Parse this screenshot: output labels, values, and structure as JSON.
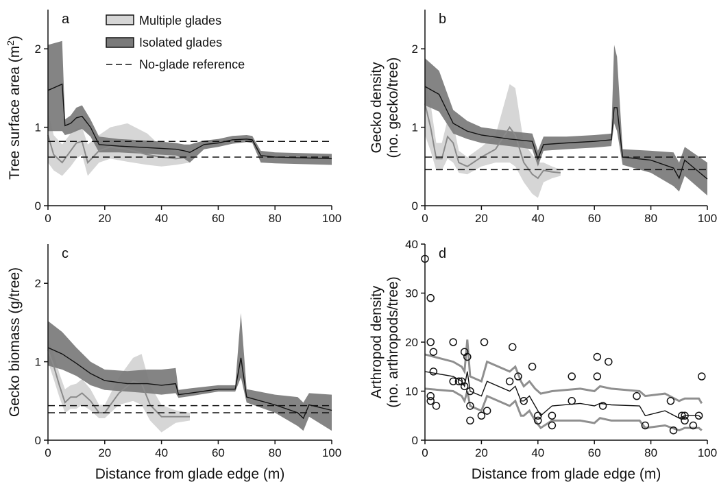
{
  "legend": {
    "multiple": "Multiple glades",
    "isolated": "Isolated glades",
    "reference": "No-glade reference"
  },
  "colors": {
    "multiple_band": "#d6d6d6",
    "isolated_band": "#7a7a7a",
    "mean_line": "#111111",
    "multiple_line": "#8a8a8a",
    "arthropod_band": "#8f8f8f"
  },
  "chart_data": [
    {
      "panel": "a",
      "type": "area",
      "ylabel": "Tree surface area (m2)",
      "xlim": [
        0,
        100
      ],
      "ylim": [
        0,
        2.5
      ],
      "xticks": [
        0,
        20,
        40,
        60,
        80,
        100
      ],
      "yticks": [
        0,
        1,
        2
      ],
      "reference_lines": [
        0.82,
        0.62
      ],
      "series": [
        {
          "name": "Isolated glades",
          "x": [
            0,
            5,
            6,
            8,
            10,
            12,
            15,
            18,
            25,
            35,
            45,
            48,
            50,
            55,
            60,
            65,
            70,
            72,
            75,
            80,
            100
          ],
          "mean": [
            1.47,
            1.55,
            1.02,
            1.05,
            1.12,
            1.14,
            1.0,
            0.78,
            0.76,
            0.74,
            0.72,
            0.7,
            0.68,
            0.78,
            0.8,
            0.84,
            0.85,
            0.84,
            0.64,
            0.62,
            0.6
          ],
          "lower": [
            0.95,
            0.95,
            0.9,
            0.92,
            0.95,
            0.98,
            0.88,
            0.68,
            0.68,
            0.66,
            0.64,
            0.6,
            0.55,
            0.72,
            0.75,
            0.79,
            0.81,
            0.8,
            0.55,
            0.54,
            0.52
          ],
          "upper": [
            2.05,
            2.1,
            1.1,
            1.15,
            1.25,
            1.28,
            1.1,
            0.88,
            0.85,
            0.83,
            0.8,
            0.78,
            0.78,
            0.83,
            0.85,
            0.89,
            0.9,
            0.89,
            0.7,
            0.68,
            0.66
          ]
        },
        {
          "name": "Multiple glades",
          "x": [
            0,
            2,
            5,
            8,
            10,
            12,
            14,
            18,
            22,
            28,
            35,
            40,
            45,
            50
          ],
          "mean": [
            0.9,
            0.65,
            0.55,
            0.7,
            0.8,
            0.82,
            0.55,
            0.7,
            0.75,
            0.72,
            0.65,
            0.62,
            0.6,
            0.62
          ],
          "lower": [
            0.55,
            0.45,
            0.38,
            0.5,
            0.6,
            0.65,
            0.38,
            0.55,
            0.6,
            0.56,
            0.52,
            0.5,
            0.52,
            0.55
          ],
          "upper": [
            1.2,
            0.9,
            0.78,
            0.92,
            0.98,
            1.0,
            0.78,
            0.9,
            1.0,
            1.05,
            0.92,
            0.75,
            0.68,
            0.7
          ]
        }
      ]
    },
    {
      "panel": "b",
      "type": "area",
      "ylabel": "Gecko density",
      "ylabel2": "(no. gecko/tree)",
      "xlim": [
        0,
        100
      ],
      "ylim": [
        0,
        2.5
      ],
      "xticks": [
        0,
        20,
        40,
        60,
        80,
        100
      ],
      "yticks": [
        0,
        1,
        2
      ],
      "reference_lines": [
        0.62,
        0.46
      ],
      "series": [
        {
          "name": "Isolated glades",
          "x": [
            0,
            5,
            10,
            15,
            20,
            30,
            38,
            40,
            42,
            50,
            60,
            66,
            67,
            68,
            70,
            80,
            88,
            90,
            92,
            100
          ],
          "mean": [
            1.52,
            1.42,
            1.05,
            0.95,
            0.9,
            0.85,
            0.82,
            0.6,
            0.78,
            0.8,
            0.82,
            0.84,
            1.25,
            1.25,
            0.62,
            0.58,
            0.48,
            0.35,
            0.58,
            0.34
          ],
          "lower": [
            1.28,
            1.2,
            0.92,
            0.85,
            0.8,
            0.76,
            0.72,
            0.5,
            0.7,
            0.72,
            0.74,
            0.76,
            1.05,
            0.95,
            0.52,
            0.42,
            0.25,
            0.18,
            0.38,
            0.13
          ],
          "upper": [
            1.88,
            1.72,
            1.22,
            1.08,
            1.0,
            0.95,
            0.92,
            0.7,
            0.88,
            0.88,
            0.9,
            0.92,
            2.05,
            1.9,
            0.72,
            0.7,
            0.68,
            0.55,
            0.75,
            0.55
          ]
        },
        {
          "name": "Multiple glades",
          "x": [
            0,
            2,
            4,
            6,
            8,
            10,
            12,
            15,
            20,
            25,
            30,
            32,
            35,
            38,
            40,
            42,
            45,
            48
          ],
          "mean": [
            1.3,
            1.0,
            0.6,
            0.6,
            0.88,
            0.8,
            0.55,
            0.5,
            0.62,
            0.72,
            1.0,
            0.9,
            0.55,
            0.4,
            0.35,
            0.45,
            0.43,
            0.42
          ],
          "lower": [
            0.9,
            0.7,
            0.45,
            0.45,
            0.6,
            0.55,
            0.42,
            0.4,
            0.5,
            0.55,
            0.55,
            0.5,
            0.3,
            0.15,
            0.1,
            0.3,
            0.35,
            0.38
          ],
          "upper": [
            1.6,
            1.3,
            0.8,
            0.8,
            1.1,
            1.05,
            0.7,
            0.62,
            0.75,
            0.9,
            1.55,
            1.5,
            0.8,
            0.65,
            0.55,
            0.55,
            0.5,
            0.46
          ]
        }
      ]
    },
    {
      "panel": "c",
      "type": "area",
      "ylabel": "Gecko biomass (g/tree)",
      "xlim": [
        0,
        100
      ],
      "ylim": [
        0,
        2.5
      ],
      "xticks": [
        0,
        20,
        40,
        60,
        80,
        100
      ],
      "yticks": [
        0,
        1,
        2
      ],
      "xlabel": "Distance from glade edge (m)",
      "reference_lines": [
        0.44,
        0.35
      ],
      "series": [
        {
          "name": "Isolated glades",
          "x": [
            0,
            5,
            10,
            15,
            20,
            28,
            35,
            40,
            45,
            46,
            50,
            60,
            66,
            68,
            70,
            80,
            88,
            90,
            92,
            100
          ],
          "mean": [
            1.18,
            1.1,
            0.98,
            0.85,
            0.76,
            0.72,
            0.72,
            0.7,
            0.72,
            0.58,
            0.6,
            0.65,
            0.65,
            1.05,
            0.55,
            0.45,
            0.35,
            0.28,
            0.45,
            0.38
          ],
          "lower": [
            0.95,
            0.9,
            0.82,
            0.7,
            0.64,
            0.62,
            0.6,
            0.58,
            0.6,
            0.54,
            0.56,
            0.62,
            0.62,
            0.8,
            0.48,
            0.35,
            0.18,
            0.12,
            0.3,
            0.12
          ],
          "upper": [
            1.52,
            1.38,
            1.18,
            1.0,
            0.9,
            0.88,
            0.9,
            0.9,
            0.92,
            0.64,
            0.66,
            0.7,
            0.7,
            1.62,
            0.65,
            0.58,
            0.55,
            0.48,
            0.6,
            0.58
          ]
        },
        {
          "name": "Multiple glades",
          "x": [
            0,
            2,
            4,
            6,
            8,
            10,
            12,
            15,
            18,
            20,
            25,
            30,
            33,
            36,
            40,
            45,
            50
          ],
          "mean": [
            1.15,
            0.95,
            0.7,
            0.48,
            0.55,
            0.55,
            0.6,
            0.5,
            0.35,
            0.35,
            0.6,
            0.75,
            0.72,
            0.45,
            0.3,
            0.3,
            0.3
          ],
          "lower": [
            1.0,
            0.78,
            0.55,
            0.35,
            0.4,
            0.4,
            0.45,
            0.38,
            0.28,
            0.28,
            0.45,
            0.5,
            0.45,
            0.25,
            0.1,
            0.22,
            0.25
          ],
          "upper": [
            1.3,
            1.1,
            0.85,
            0.65,
            0.7,
            0.72,
            0.78,
            0.65,
            0.45,
            0.45,
            0.8,
            1.05,
            1.1,
            0.7,
            0.45,
            0.38,
            0.35
          ]
        }
      ]
    },
    {
      "panel": "d",
      "type": "scatter",
      "ylabel": "Arthropod density",
      "ylabel2": "(no. arthropods/tree)",
      "xlabel": "Distance from glade edge (m)",
      "xlim": [
        0,
        100
      ],
      "ylim": [
        0,
        40
      ],
      "xticks": [
        0,
        20,
        40,
        60,
        80,
        100
      ],
      "yticks": [
        0,
        10,
        20,
        30,
        40
      ],
      "points": [
        [
          0,
          37
        ],
        [
          2,
          29
        ],
        [
          2,
          20
        ],
        [
          2,
          9
        ],
        [
          2,
          8
        ],
        [
          3,
          18
        ],
        [
          3,
          14
        ],
        [
          4,
          7
        ],
        [
          10,
          20
        ],
        [
          10,
          12
        ],
        [
          12,
          12
        ],
        [
          13,
          12
        ],
        [
          14,
          18
        ],
        [
          14,
          11
        ],
        [
          15,
          17
        ],
        [
          16,
          10
        ],
        [
          16,
          7
        ],
        [
          16,
          4
        ],
        [
          20,
          5
        ],
        [
          21,
          20
        ],
        [
          22,
          6
        ],
        [
          30,
          12
        ],
        [
          31,
          19
        ],
        [
          33,
          13
        ],
        [
          35,
          8
        ],
        [
          38,
          15
        ],
        [
          40,
          4
        ],
        [
          40,
          5
        ],
        [
          45,
          5
        ],
        [
          45,
          3
        ],
        [
          52,
          13
        ],
        [
          52,
          8
        ],
        [
          61,
          17
        ],
        [
          61,
          13
        ],
        [
          63,
          7
        ],
        [
          65,
          16
        ],
        [
          75,
          9
        ],
        [
          78,
          3
        ],
        [
          87,
          8
        ],
        [
          88,
          2
        ],
        [
          91,
          5
        ],
        [
          92,
          4
        ],
        [
          92,
          5
        ],
        [
          95,
          3
        ],
        [
          97,
          5
        ],
        [
          98,
          13
        ]
      ],
      "mean_line": {
        "x": [
          0,
          10,
          13,
          14,
          15,
          16,
          20,
          22,
          30,
          32,
          34,
          35,
          37,
          39,
          41,
          45,
          55,
          60,
          62,
          66,
          76,
          78,
          85,
          90,
          92,
          97,
          98
        ],
        "y": [
          14,
          13,
          12,
          11,
          14,
          10,
          9,
          12,
          10,
          11,
          8,
          8,
          9,
          7,
          5,
          7,
          7.5,
          7,
          7.5,
          7.2,
          7,
          5,
          6,
          4.5,
          5,
          5,
          4.5
        ]
      },
      "upper_line": {
        "x": [
          0,
          10,
          13,
          14,
          15,
          16,
          20,
          22,
          30,
          32,
          34,
          35,
          37,
          39,
          41,
          45,
          55,
          60,
          62,
          66,
          76,
          78,
          85,
          90,
          92,
          97,
          98
        ],
        "y": [
          17.5,
          16,
          15,
          14,
          20.5,
          13,
          12,
          16,
          14,
          15,
          12,
          11,
          12,
          10.5,
          9.5,
          10,
          10.5,
          10,
          11,
          10.5,
          10,
          9,
          9.5,
          8,
          8.5,
          8.5,
          7.5
        ]
      },
      "lower_line": {
        "x": [
          0,
          10,
          13,
          14,
          15,
          16,
          20,
          22,
          30,
          32,
          34,
          35,
          37,
          39,
          41,
          45,
          55,
          60,
          62,
          66,
          76,
          78,
          85,
          90,
          92,
          97,
          98
        ],
        "y": [
          10.5,
          10,
          9,
          8,
          10,
          7,
          6,
          9,
          7,
          8,
          5,
          5,
          6,
          4,
          2.5,
          4,
          4,
          3.5,
          4.5,
          4,
          4,
          2.5,
          3,
          2,
          2.5,
          2.5,
          2
        ]
      }
    }
  ]
}
